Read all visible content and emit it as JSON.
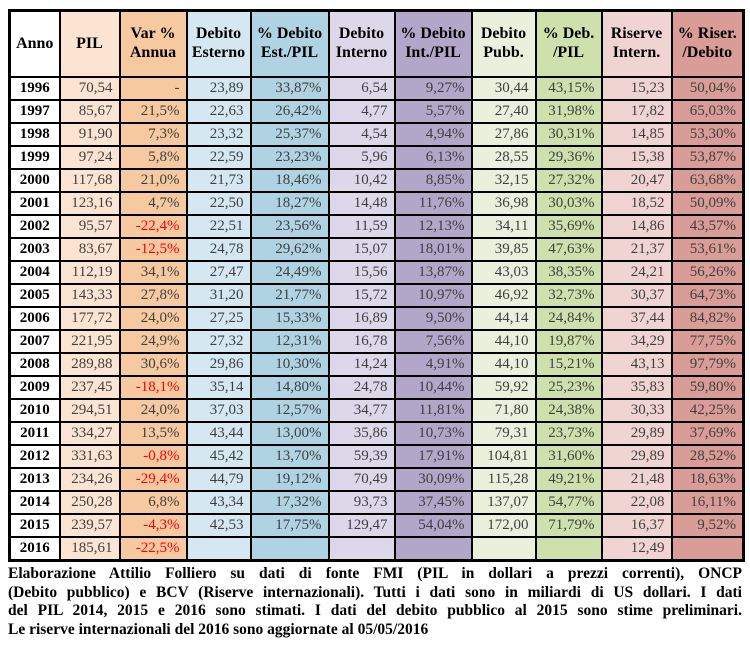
{
  "colors": {
    "negative": "#ff0000",
    "value_text": "#3f3f3f",
    "header_text": "#000000",
    "border": "#000000"
  },
  "table": {
    "columns": [
      {
        "id": "anno",
        "label_lines": [
          "Anno"
        ],
        "fill": "#ffffff"
      },
      {
        "id": "pil",
        "label_lines": [
          "PIL"
        ],
        "fill": "#fbe5d2"
      },
      {
        "id": "var-annua",
        "label_lines": [
          "Var %",
          "Annua"
        ],
        "fill": "#f6c9a0"
      },
      {
        "id": "debito-esterno",
        "label_lines": [
          "Debito",
          "Esterno"
        ],
        "fill": "#d5e7f1"
      },
      {
        "id": "pct-debito-est",
        "label_lines": [
          "% Debito",
          "Est./PIL"
        ],
        "fill": "#afd3e3"
      },
      {
        "id": "debito-interno",
        "label_lines": [
          "Debito",
          "Interno"
        ],
        "fill": "#dcd8ea"
      },
      {
        "id": "pct-debito-int",
        "label_lines": [
          "% Debito",
          "Int./PIL"
        ],
        "fill": "#b2a6c9"
      },
      {
        "id": "debito-pubb",
        "label_lines": [
          "Debito",
          "Pubb."
        ],
        "fill": "#e9f0db"
      },
      {
        "id": "pct-deb-pil",
        "label_lines": [
          "% Deb.",
          "/PIL"
        ],
        "fill": "#cee1ac"
      },
      {
        "id": "riserve-intern",
        "label_lines": [
          "Riserve",
          "Intern."
        ],
        "fill": "#f0d4d2"
      },
      {
        "id": "pct-riser-debito",
        "label_lines": [
          "% Riser.",
          "/Debito"
        ],
        "fill": "#d99c97"
      }
    ],
    "rows": [
      {
        "anno": "1996",
        "cells": [
          "70,54",
          "-",
          "23,89",
          "33,87%",
          "6,54",
          "9,27%",
          "30,44",
          "43,15%",
          "15,23",
          "50,04%"
        ]
      },
      {
        "anno": "1997",
        "cells": [
          "85,67",
          "21,5%",
          "22,63",
          "26,42%",
          "4,77",
          "5,57%",
          "27,40",
          "31,98%",
          "17,82",
          "65,03%"
        ]
      },
      {
        "anno": "1998",
        "cells": [
          "91,90",
          "7,3%",
          "23,32",
          "25,37%",
          "4,54",
          "4,94%",
          "27,86",
          "30,31%",
          "14,85",
          "53,30%"
        ]
      },
      {
        "anno": "1999",
        "cells": [
          "97,24",
          "5,8%",
          "22,59",
          "23,23%",
          "5,96",
          "6,13%",
          "28,55",
          "29,36%",
          "15,38",
          "53,87%"
        ]
      },
      {
        "anno": "2000",
        "cells": [
          "117,68",
          "21,0%",
          "21,73",
          "18,46%",
          "10,42",
          "8,85%",
          "32,15",
          "27,32%",
          "20,47",
          "63,68%"
        ]
      },
      {
        "anno": "2001",
        "cells": [
          "123,16",
          "4,7%",
          "22,50",
          "18,27%",
          "14,48",
          "11,76%",
          "36,98",
          "30,03%",
          "18,52",
          "50,09%"
        ]
      },
      {
        "anno": "2002",
        "cells": [
          "95,57",
          "-22,4%",
          "22,51",
          "23,56%",
          "11,59",
          "12,13%",
          "34,11",
          "35,69%",
          "14,86",
          "43,57%"
        ]
      },
      {
        "anno": "2003",
        "cells": [
          "83,67",
          "-12,5%",
          "24,78",
          "29,62%",
          "15,07",
          "18,01%",
          "39,85",
          "47,63%",
          "21,37",
          "53,61%"
        ]
      },
      {
        "anno": "2004",
        "cells": [
          "112,19",
          "34,1%",
          "27,47",
          "24,49%",
          "15,56",
          "13,87%",
          "43,03",
          "38,35%",
          "24,21",
          "56,26%"
        ]
      },
      {
        "anno": "2005",
        "cells": [
          "143,33",
          "27,8%",
          "31,20",
          "21,77%",
          "15,72",
          "10,97%",
          "46,92",
          "32,73%",
          "30,37",
          "64,73%"
        ]
      },
      {
        "anno": "2006",
        "cells": [
          "177,72",
          "24,0%",
          "27,25",
          "15,33%",
          "16,89",
          "9,50%",
          "44,14",
          "24,84%",
          "37,44",
          "84,82%"
        ]
      },
      {
        "anno": "2007",
        "cells": [
          "221,95",
          "24,9%",
          "27,32",
          "12,31%",
          "16,78",
          "7,56%",
          "44,10",
          "19,87%",
          "34,29",
          "77,75%"
        ]
      },
      {
        "anno": "2008",
        "cells": [
          "289,88",
          "30,6%",
          "29,86",
          "10,30%",
          "14,24",
          "4,91%",
          "44,10",
          "15,21%",
          "43,13",
          "97,79%"
        ]
      },
      {
        "anno": "2009",
        "cells": [
          "237,45",
          "-18,1%",
          "35,14",
          "14,80%",
          "24,78",
          "10,44%",
          "59,92",
          "25,23%",
          "35,83",
          "59,80%"
        ]
      },
      {
        "anno": "2010",
        "cells": [
          "294,51",
          "24,0%",
          "37,03",
          "12,57%",
          "34,77",
          "11,81%",
          "71,80",
          "24,38%",
          "30,33",
          "42,25%"
        ]
      },
      {
        "anno": "2011",
        "cells": [
          "334,27",
          "13,5%",
          "43,44",
          "13,00%",
          "35,86",
          "10,73%",
          "79,31",
          "23,73%",
          "29,89",
          "37,69%"
        ]
      },
      {
        "anno": "2012",
        "cells": [
          "331,63",
          "-0,8%",
          "45,42",
          "13,70%",
          "59,39",
          "17,91%",
          "104,81",
          "31,60%",
          "29,89",
          "28,52%"
        ]
      },
      {
        "anno": "2013",
        "cells": [
          "234,26",
          "-29,4%",
          "44,79",
          "19,12%",
          "70,49",
          "30,09%",
          "115,28",
          "49,21%",
          "21,48",
          "18,63%"
        ]
      },
      {
        "anno": "2014",
        "cells": [
          "250,28",
          "6,8%",
          "43,34",
          "17,32%",
          "93,73",
          "37,45%",
          "137,07",
          "54,77%",
          "22,08",
          "16,11%"
        ]
      },
      {
        "anno": "2015",
        "cells": [
          "239,57",
          "-4,3%",
          "42,53",
          "17,75%",
          "129,47",
          "54,04%",
          "172,00",
          "71,79%",
          "16,37",
          "9,52%"
        ]
      },
      {
        "anno": "2016",
        "cells": [
          "185,61",
          "-22,5%",
          "",
          "",
          "",
          "",
          "",
          "",
          "12,49",
          ""
        ]
      }
    ]
  },
  "footer": {
    "lines": [
      "Elaborazione Attilio Folliero su dati di fonte FMI (PIL in dollari a prezzi correnti), ONCP",
      "(Debito pubblico) e BCV (Riserve internazionali). Tutti i dati sono in miliardi di US dollari. I dati",
      "del PIL 2014, 2015 e 2016 sono stimati. I dati del debito pubblico al 2015 sono stime preliminari.",
      "Le riserve internazionali del 2016 sono aggiornate al 05/05/2016"
    ]
  },
  "chart_data": {
    "type": "table",
    "title": "",
    "columns": [
      "Anno",
      "PIL",
      "Var % Annua",
      "Debito Esterno",
      "% Debito Est./PIL",
      "Debito Interno",
      "% Debito Int./PIL",
      "Debito Pubb.",
      "% Deb./PIL",
      "Riserve Intern.",
      "% Riser./Debito"
    ],
    "units": "miliardi di US dollari",
    "rows": [
      [
        "1996",
        70.54,
        null,
        23.89,
        33.87,
        6.54,
        9.27,
        30.44,
        43.15,
        15.23,
        50.04
      ],
      [
        "1997",
        85.67,
        21.5,
        22.63,
        26.42,
        4.77,
        5.57,
        27.4,
        31.98,
        17.82,
        65.03
      ],
      [
        "1998",
        91.9,
        7.3,
        23.32,
        25.37,
        4.54,
        4.94,
        27.86,
        30.31,
        14.85,
        53.3
      ],
      [
        "1999",
        97.24,
        5.8,
        22.59,
        23.23,
        5.96,
        6.13,
        28.55,
        29.36,
        15.38,
        53.87
      ],
      [
        "2000",
        117.68,
        21.0,
        21.73,
        18.46,
        10.42,
        8.85,
        32.15,
        27.32,
        20.47,
        63.68
      ],
      [
        "2001",
        123.16,
        4.7,
        22.5,
        18.27,
        14.48,
        11.76,
        36.98,
        30.03,
        18.52,
        50.09
      ],
      [
        "2002",
        95.57,
        -22.4,
        22.51,
        23.56,
        11.59,
        12.13,
        34.11,
        35.69,
        14.86,
        43.57
      ],
      [
        "2003",
        83.67,
        -12.5,
        24.78,
        29.62,
        15.07,
        18.01,
        39.85,
        47.63,
        21.37,
        53.61
      ],
      [
        "2004",
        112.19,
        34.1,
        27.47,
        24.49,
        15.56,
        13.87,
        43.03,
        38.35,
        24.21,
        56.26
      ],
      [
        "2005",
        143.33,
        27.8,
        31.2,
        21.77,
        15.72,
        10.97,
        46.92,
        32.73,
        30.37,
        64.73
      ],
      [
        "2006",
        177.72,
        24.0,
        27.25,
        15.33,
        16.89,
        9.5,
        44.14,
        24.84,
        37.44,
        84.82
      ],
      [
        "2007",
        221.95,
        24.9,
        27.32,
        12.31,
        16.78,
        7.56,
        44.1,
        19.87,
        34.29,
        77.75
      ],
      [
        "2008",
        289.88,
        30.6,
        29.86,
        10.3,
        14.24,
        4.91,
        44.1,
        15.21,
        43.13,
        97.79
      ],
      [
        "2009",
        237.45,
        -18.1,
        35.14,
        14.8,
        24.78,
        10.44,
        59.92,
        25.23,
        35.83,
        59.8
      ],
      [
        "2010",
        294.51,
        24.0,
        37.03,
        12.57,
        34.77,
        11.81,
        71.8,
        24.38,
        30.33,
        42.25
      ],
      [
        "2011",
        334.27,
        13.5,
        43.44,
        13.0,
        35.86,
        10.73,
        79.31,
        23.73,
        29.89,
        37.69
      ],
      [
        "2012",
        331.63,
        -0.8,
        45.42,
        13.7,
        59.39,
        17.91,
        104.81,
        31.6,
        29.89,
        28.52
      ],
      [
        "2013",
        234.26,
        -29.4,
        44.79,
        19.12,
        70.49,
        30.09,
        115.28,
        49.21,
        21.48,
        18.63
      ],
      [
        "2014",
        250.28,
        6.8,
        43.34,
        17.32,
        93.73,
        37.45,
        137.07,
        54.77,
        22.08,
        16.11
      ],
      [
        "2015",
        239.57,
        -4.3,
        42.53,
        17.75,
        129.47,
        54.04,
        172.0,
        71.79,
        16.37,
        9.52
      ],
      [
        "2016",
        185.61,
        -22.5,
        null,
        null,
        null,
        null,
        null,
        null,
        12.49,
        null
      ]
    ]
  }
}
